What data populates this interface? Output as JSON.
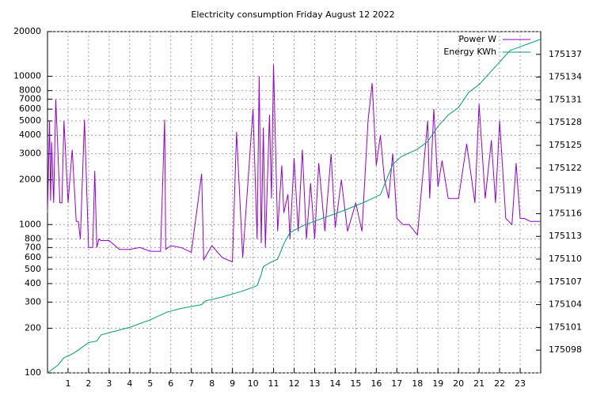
{
  "chart_data": {
    "type": "line",
    "title": "Electricity consumption Friday August 12 2022",
    "log_y": true,
    "grid": true,
    "legend": "top-right",
    "xlim": [
      0,
      24
    ],
    "xticks": [
      1,
      2,
      3,
      4,
      5,
      6,
      7,
      8,
      9,
      10,
      11,
      12,
      13,
      14,
      15,
      16,
      17,
      18,
      19,
      20,
      21,
      22,
      23
    ],
    "ylim": [
      100,
      20000
    ],
    "yticks": [
      100,
      200,
      300,
      400,
      500,
      600,
      700,
      800,
      1000,
      2000,
      3000,
      4000,
      5000,
      6000,
      7000,
      8000,
      10000,
      20000
    ],
    "y2lim": [
      175095,
      175140
    ],
    "y2ticks": [
      175098,
      175101,
      175104,
      175107,
      175110,
      175113,
      175116,
      175119,
      175122,
      175125,
      175128,
      175131,
      175134,
      175137
    ],
    "series": [
      {
        "name": "Power W",
        "color": "#9400d3",
        "x": [
          0,
          0.1,
          0.15,
          0.2,
          0.3,
          0.4,
          0.5,
          0.6,
          0.7,
          0.8,
          1.0,
          1.2,
          1.4,
          1.5,
          1.6,
          1.8,
          2.0,
          2.2,
          2.3,
          2.4,
          2.5,
          2.6,
          3.0,
          3.5,
          4.0,
          4.5,
          5.0,
          5.5,
          5.7,
          5.75,
          6.0,
          6.5,
          7.0,
          7.5,
          7.6,
          8.0,
          8.5,
          9.0,
          9.2,
          9.5,
          10.0,
          10.2,
          10.3,
          10.4,
          10.5,
          10.6,
          10.8,
          10.9,
          11.0,
          11.2,
          11.4,
          11.5,
          11.7,
          11.8,
          12.0,
          12.2,
          12.4,
          12.6,
          12.8,
          13.0,
          13.2,
          13.5,
          13.8,
          14.0,
          14.3,
          14.6,
          15.0,
          15.3,
          15.6,
          15.8,
          16.0,
          16.2,
          16.4,
          16.6,
          16.8,
          17.0,
          17.3,
          17.6,
          18.0,
          18.5,
          18.6,
          18.8,
          19.0,
          19.2,
          19.5,
          19.8,
          20.0,
          20.4,
          20.8,
          21.0,
          21.3,
          21.6,
          21.8,
          22.0,
          22.3,
          22.6,
          22.8,
          23.0,
          23.2,
          23.5,
          24.0
        ],
        "values": [
          1200,
          5000,
          1450,
          3600,
          1400,
          7000,
          3300,
          1400,
          1400,
          5000,
          1400,
          3200,
          1050,
          1050,
          800,
          5100,
          700,
          700,
          2300,
          700,
          800,
          780,
          780,
          680,
          680,
          700,
          660,
          660,
          5100,
          680,
          720,
          700,
          650,
          2200,
          580,
          720,
          600,
          560,
          4200,
          600,
          6000,
          800,
          10000,
          750,
          4500,
          700,
          5500,
          1500,
          12000,
          900,
          2500,
          1200,
          1600,
          800,
          2800,
          900,
          3200,
          800,
          1900,
          800,
          2600,
          900,
          3000,
          950,
          2000,
          900,
          1400,
          900,
          5000,
          9000,
          2500,
          4000,
          2000,
          1500,
          3000,
          1100,
          1000,
          1000,
          850,
          5000,
          1500,
          6000,
          1800,
          2700,
          1500,
          1500,
          1500,
          3500,
          1400,
          6500,
          1500,
          3700,
          1400,
          5000,
          1100,
          1000,
          2600,
          1100,
          1100,
          1050,
          1050
        ]
      },
      {
        "name": "Energy KWh",
        "color": "#009e73",
        "axis": "y2",
        "x": [
          0,
          0.5,
          0.8,
          1.2,
          1.5,
          2.0,
          2.4,
          2.6,
          3.0,
          4.0,
          5.0,
          5.8,
          6.5,
          7.5,
          7.7,
          8.5,
          9.5,
          10.2,
          10.4,
          10.5,
          10.8,
          11.2,
          11.5,
          11.8,
          12.5,
          13.5,
          14.5,
          15.5,
          16.2,
          16.8,
          17.2,
          18.0,
          18.5,
          19.0,
          19.5,
          20.0,
          20.5,
          21.0,
          21.5,
          22.0,
          22.5,
          23.0,
          24.0
        ],
        "values": [
          175095,
          175096,
          175097,
          175097.5,
          175098,
          175099,
          175099.2,
          175100,
          175100.3,
          175101,
          175102,
          175103,
          175103.5,
          175104,
          175104.5,
          175105,
          175105.8,
          175106.5,
          175108,
          175109,
          175109.5,
          175110,
          175112,
          175113.5,
          175114.5,
          175115.5,
          175116.5,
          175117.6,
          175118.5,
          175122.5,
          175123.5,
          175124.5,
          175125.5,
          175127.5,
          175129,
          175130,
          175132,
          175133,
          175134.5,
          175136,
          175137.5,
          175138,
          175139
        ]
      }
    ]
  }
}
